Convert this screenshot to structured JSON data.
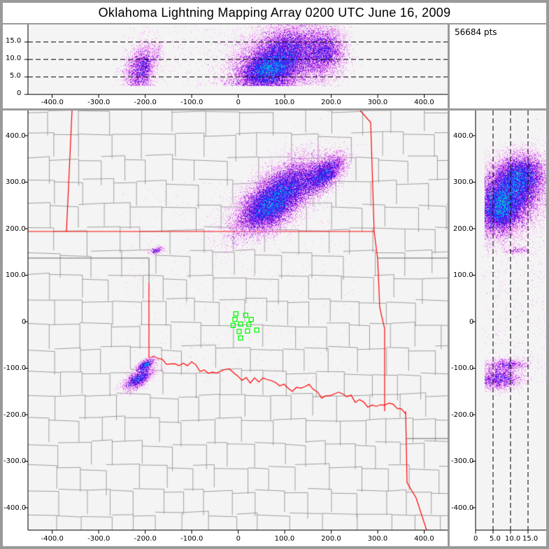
{
  "title": "Oklahoma Lightning Mapping Array   0200 UTC  June 16, 2009",
  "point_count": "56684 pts",
  "colors": {
    "background": "#9a9a9a",
    "plot_bg": "#f4f4f4",
    "state_border": "#ff0000",
    "county_border": "#888888",
    "station": "#00ff00"
  },
  "density_colormap": [
    "#f2a6f2",
    "#c840e8",
    "#6a10d8",
    "#2424ff",
    "#00c4e4",
    "#18c060",
    "#0e8a44",
    "#ffc020"
  ],
  "top_view": {
    "x_ticks": [
      "-400.0",
      "-300.0",
      "-200.0",
      "-100.0",
      "0",
      "100.0",
      "200.0",
      "300.0",
      "400.0"
    ],
    "x_tick_values": [
      -400,
      -300,
      -200,
      -100,
      0,
      100,
      200,
      300,
      400
    ],
    "z_ticks": [
      "0",
      "5.0",
      "10.0",
      "15.0"
    ],
    "z_tick_values": [
      0,
      5,
      10,
      15
    ],
    "dashed_altitudes_km": [
      5,
      10,
      15
    ]
  },
  "plan_view": {
    "x_ticks": [
      "-400.0",
      "-300.0",
      "-200.0",
      "-100.0",
      "0",
      "100.0",
      "200.0",
      "300.0",
      "400.0"
    ],
    "x_tick_values": [
      -400,
      -300,
      -200,
      -100,
      0,
      100,
      200,
      300,
      400
    ],
    "y_ticks": [
      "400.0",
      "300.0",
      "200.0",
      "100.0",
      "0",
      "-100.0",
      "-200.0",
      "-300.0",
      "-400.0"
    ],
    "y_tick_values": [
      400,
      300,
      200,
      100,
      0,
      -100,
      -200,
      -300,
      -400
    ],
    "stations_km": [
      [
        -5,
        17
      ],
      [
        16,
        14
      ],
      [
        -7,
        5
      ],
      [
        28,
        5
      ],
      [
        5,
        -5
      ],
      [
        -11,
        -8
      ],
      [
        23,
        -6
      ],
      [
        40,
        -18
      ],
      [
        2,
        -21
      ],
      [
        20,
        -20
      ],
      [
        5,
        -35
      ]
    ]
  },
  "side_view": {
    "z_ticks": [
      "0",
      "5.0",
      "10.0",
      "15.0"
    ],
    "z_tick_values": [
      0,
      5,
      10,
      15
    ],
    "y_ticks": [
      "400.0",
      "300.0",
      "200.0",
      "100.0",
      "0",
      "-100.0",
      "-200.0",
      "-300.0",
      "-400.0"
    ],
    "y_tick_values": [
      400,
      300,
      200,
      100,
      0,
      -100,
      -200,
      -300,
      -400
    ],
    "dashed_altitudes_km": [
      5,
      10,
      15
    ]
  }
}
